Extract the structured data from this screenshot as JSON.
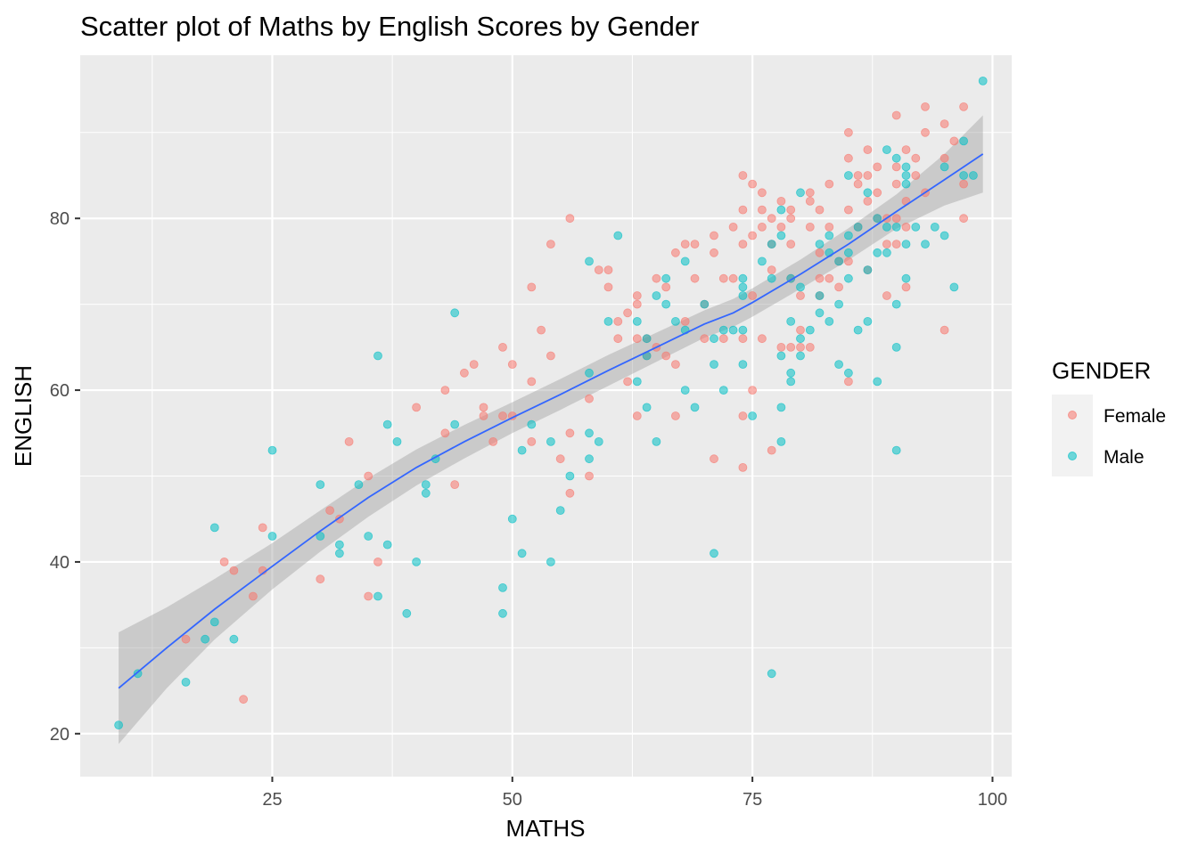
{
  "chart_data": {
    "type": "scatter",
    "title": "Scatter plot of Maths by English Scores by Gender",
    "xlabel": "MATHS",
    "ylabel": "ENGLISH",
    "xlim": [
      5,
      102
    ],
    "ylim": [
      15,
      99
    ],
    "x_ticks": [
      25,
      50,
      75,
      100
    ],
    "y_ticks": [
      20,
      40,
      60,
      80
    ],
    "grid": true,
    "legend": {
      "title": "GENDER",
      "position": "right"
    },
    "colors": {
      "Female": "#F8766D",
      "Male": "#00BFC4",
      "smooth": "#3366FF",
      "ribbon": "#999999",
      "panel": "#EBEBEB"
    },
    "series": [
      {
        "name": "Female",
        "points": [
          [
            16,
            31
          ],
          [
            20,
            40
          ],
          [
            21,
            39
          ],
          [
            22,
            24
          ],
          [
            23,
            36
          ],
          [
            24,
            44
          ],
          [
            24,
            39
          ],
          [
            30,
            38
          ],
          [
            31,
            46
          ],
          [
            32,
            45
          ],
          [
            33,
            54
          ],
          [
            35,
            50
          ],
          [
            35,
            36
          ],
          [
            36,
            40
          ],
          [
            40,
            58
          ],
          [
            43,
            60
          ],
          [
            43,
            55
          ],
          [
            44,
            49
          ],
          [
            45,
            62
          ],
          [
            46,
            63
          ],
          [
            47,
            58
          ],
          [
            47,
            57
          ],
          [
            48,
            54
          ],
          [
            49,
            65
          ],
          [
            49,
            57
          ],
          [
            50,
            57
          ],
          [
            50,
            63
          ],
          [
            52,
            61
          ],
          [
            52,
            54
          ],
          [
            52,
            72
          ],
          [
            53,
            67
          ],
          [
            54,
            64
          ],
          [
            54,
            77
          ],
          [
            55,
            52
          ],
          [
            56,
            80
          ],
          [
            56,
            48
          ],
          [
            56,
            55
          ],
          [
            58,
            50
          ],
          [
            58,
            59
          ],
          [
            59,
            74
          ],
          [
            60,
            74
          ],
          [
            60,
            72
          ],
          [
            61,
            66
          ],
          [
            61,
            68
          ],
          [
            62,
            69
          ],
          [
            62,
            61
          ],
          [
            63,
            71
          ],
          [
            63,
            70
          ],
          [
            63,
            66
          ],
          [
            63,
            57
          ],
          [
            64,
            66
          ],
          [
            64,
            64
          ],
          [
            65,
            73
          ],
          [
            65,
            65
          ],
          [
            66,
            64
          ],
          [
            66,
            72
          ],
          [
            67,
            76
          ],
          [
            67,
            63
          ],
          [
            67,
            57
          ],
          [
            68,
            77
          ],
          [
            68,
            68
          ],
          [
            69,
            73
          ],
          [
            69,
            77
          ],
          [
            70,
            70
          ],
          [
            70,
            66
          ],
          [
            71,
            78
          ],
          [
            71,
            76
          ],
          [
            71,
            52
          ],
          [
            72,
            73
          ],
          [
            72,
            66
          ],
          [
            73,
            79
          ],
          [
            73,
            73
          ],
          [
            74,
            85
          ],
          [
            74,
            81
          ],
          [
            74,
            77
          ],
          [
            74,
            66
          ],
          [
            74,
            57
          ],
          [
            74,
            51
          ],
          [
            75,
            84
          ],
          [
            75,
            78
          ],
          [
            75,
            71
          ],
          [
            75,
            60
          ],
          [
            76,
            81
          ],
          [
            76,
            83
          ],
          [
            76,
            79
          ],
          [
            76,
            66
          ],
          [
            77,
            80
          ],
          [
            77,
            77
          ],
          [
            77,
            74
          ],
          [
            77,
            53
          ],
          [
            78,
            82
          ],
          [
            78,
            79
          ],
          [
            78,
            65
          ],
          [
            79,
            81
          ],
          [
            79,
            80
          ],
          [
            79,
            77
          ],
          [
            79,
            73
          ],
          [
            79,
            65
          ],
          [
            80,
            71
          ],
          [
            80,
            67
          ],
          [
            80,
            65
          ],
          [
            81,
            83
          ],
          [
            81,
            82
          ],
          [
            81,
            79
          ],
          [
            81,
            65
          ],
          [
            82,
            81
          ],
          [
            82,
            76
          ],
          [
            82,
            73
          ],
          [
            82,
            71
          ],
          [
            83,
            84
          ],
          [
            83,
            79
          ],
          [
            83,
            73
          ],
          [
            84,
            75
          ],
          [
            84,
            72
          ],
          [
            85,
            90
          ],
          [
            85,
            87
          ],
          [
            85,
            81
          ],
          [
            85,
            75
          ],
          [
            85,
            61
          ],
          [
            86,
            85
          ],
          [
            86,
            84
          ],
          [
            86,
            79
          ],
          [
            87,
            88
          ],
          [
            87,
            85
          ],
          [
            87,
            82
          ],
          [
            87,
            74
          ],
          [
            88,
            86
          ],
          [
            88,
            83
          ],
          [
            88,
            80
          ],
          [
            89,
            80
          ],
          [
            89,
            77
          ],
          [
            89,
            71
          ],
          [
            90,
            92
          ],
          [
            90,
            86
          ],
          [
            90,
            84
          ],
          [
            90,
            80
          ],
          [
            90,
            77
          ],
          [
            91,
            88
          ],
          [
            91,
            82
          ],
          [
            91,
            79
          ],
          [
            91,
            72
          ],
          [
            92,
            87
          ],
          [
            92,
            85
          ],
          [
            93,
            93
          ],
          [
            93,
            90
          ],
          [
            93,
            83
          ],
          [
            95,
            91
          ],
          [
            95,
            87
          ],
          [
            95,
            67
          ],
          [
            96,
            89
          ],
          [
            97,
            93
          ],
          [
            97,
            84
          ],
          [
            97,
            80
          ]
        ]
      },
      {
        "name": "Male",
        "points": [
          [
            9,
            21
          ],
          [
            11,
            27
          ],
          [
            16,
            26
          ],
          [
            18,
            31
          ],
          [
            19,
            33
          ],
          [
            19,
            44
          ],
          [
            21,
            31
          ],
          [
            25,
            53
          ],
          [
            25,
            43
          ],
          [
            30,
            49
          ],
          [
            30,
            43
          ],
          [
            32,
            42
          ],
          [
            32,
            41
          ],
          [
            34,
            49
          ],
          [
            35,
            43
          ],
          [
            36,
            64
          ],
          [
            36,
            36
          ],
          [
            37,
            56
          ],
          [
            37,
            42
          ],
          [
            38,
            54
          ],
          [
            39,
            34
          ],
          [
            40,
            40
          ],
          [
            41,
            49
          ],
          [
            41,
            48
          ],
          [
            42,
            52
          ],
          [
            44,
            69
          ],
          [
            44,
            56
          ],
          [
            49,
            37
          ],
          [
            49,
            34
          ],
          [
            50,
            45
          ],
          [
            51,
            53
          ],
          [
            51,
            41
          ],
          [
            52,
            56
          ],
          [
            54,
            54
          ],
          [
            54,
            40
          ],
          [
            55,
            46
          ],
          [
            56,
            50
          ],
          [
            58,
            75
          ],
          [
            58,
            62
          ],
          [
            58,
            52
          ],
          [
            58,
            55
          ],
          [
            59,
            54
          ],
          [
            60,
            68
          ],
          [
            61,
            78
          ],
          [
            63,
            68
          ],
          [
            63,
            61
          ],
          [
            64,
            64
          ],
          [
            64,
            58
          ],
          [
            64,
            66
          ],
          [
            65,
            71
          ],
          [
            65,
            54
          ],
          [
            66,
            73
          ],
          [
            66,
            70
          ],
          [
            67,
            68
          ],
          [
            68,
            75
          ],
          [
            68,
            67
          ],
          [
            68,
            60
          ],
          [
            69,
            58
          ],
          [
            70,
            70
          ],
          [
            71,
            66
          ],
          [
            71,
            63
          ],
          [
            71,
            41
          ],
          [
            72,
            67
          ],
          [
            72,
            60
          ],
          [
            73,
            67
          ],
          [
            74,
            73
          ],
          [
            74,
            72
          ],
          [
            74,
            71
          ],
          [
            74,
            67
          ],
          [
            74,
            63
          ],
          [
            75,
            57
          ],
          [
            76,
            75
          ],
          [
            77,
            77
          ],
          [
            77,
            73
          ],
          [
            77,
            27
          ],
          [
            78,
            81
          ],
          [
            78,
            78
          ],
          [
            78,
            64
          ],
          [
            78,
            58
          ],
          [
            78,
            54
          ],
          [
            79,
            73
          ],
          [
            79,
            68
          ],
          [
            79,
            62
          ],
          [
            79,
            61
          ],
          [
            80,
            83
          ],
          [
            80,
            72
          ],
          [
            80,
            66
          ],
          [
            80,
            64
          ],
          [
            81,
            67
          ],
          [
            82,
            77
          ],
          [
            82,
            71
          ],
          [
            82,
            69
          ],
          [
            83,
            78
          ],
          [
            83,
            76
          ],
          [
            83,
            68
          ],
          [
            84,
            75
          ],
          [
            84,
            70
          ],
          [
            84,
            63
          ],
          [
            85,
            85
          ],
          [
            85,
            78
          ],
          [
            85,
            76
          ],
          [
            85,
            73
          ],
          [
            85,
            62
          ],
          [
            86,
            79
          ],
          [
            86,
            67
          ],
          [
            87,
            83
          ],
          [
            87,
            74
          ],
          [
            87,
            68
          ],
          [
            88,
            80
          ],
          [
            88,
            76
          ],
          [
            88,
            61
          ],
          [
            89,
            88
          ],
          [
            89,
            79
          ],
          [
            89,
            76
          ],
          [
            90,
            87
          ],
          [
            90,
            79
          ],
          [
            90,
            70
          ],
          [
            90,
            65
          ],
          [
            90,
            53
          ],
          [
            91,
            86
          ],
          [
            91,
            85
          ],
          [
            91,
            84
          ],
          [
            91,
            77
          ],
          [
            91,
            73
          ],
          [
            92,
            79
          ],
          [
            93,
            77
          ],
          [
            94,
            79
          ],
          [
            95,
            86
          ],
          [
            95,
            78
          ],
          [
            96,
            72
          ],
          [
            97,
            89
          ],
          [
            97,
            85
          ],
          [
            98,
            85
          ],
          [
            99,
            96
          ]
        ]
      }
    ],
    "smooth_fit": {
      "method": "loess",
      "points": [
        [
          9,
          25.3
        ],
        [
          14,
          30.0
        ],
        [
          19,
          34.5
        ],
        [
          25,
          39.5
        ],
        [
          30,
          43.6
        ],
        [
          35,
          47.5
        ],
        [
          40,
          51.0
        ],
        [
          45,
          54.0
        ],
        [
          50,
          56.8
        ],
        [
          55,
          59.5
        ],
        [
          60,
          62.3
        ],
        [
          65,
          65.0
        ],
        [
          70,
          67.7
        ],
        [
          73,
          69.0
        ],
        [
          75,
          70.2
        ],
        [
          80,
          73.5
        ],
        [
          85,
          77.0
        ],
        [
          90,
          80.8
        ],
        [
          95,
          84.5
        ],
        [
          99,
          87.5
        ]
      ],
      "ribbon_half_width": [
        [
          9,
          6.5
        ],
        [
          12,
          5.2
        ],
        [
          16,
          4.2
        ],
        [
          20,
          3.3
        ],
        [
          25,
          2.7
        ],
        [
          30,
          2.4
        ],
        [
          40,
          2.1
        ],
        [
          50,
          1.8
        ],
        [
          60,
          1.8
        ],
        [
          70,
          1.6
        ],
        [
          80,
          1.7
        ],
        [
          90,
          2.0
        ],
        [
          95,
          3.0
        ],
        [
          99,
          4.5
        ]
      ]
    }
  }
}
